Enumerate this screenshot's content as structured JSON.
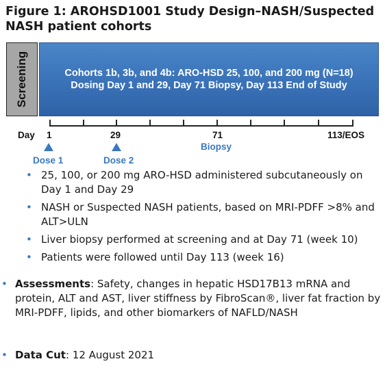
{
  "title": "Figure 1: AROHSD1001 Study Design–NASH/Suspected NASH patient cohorts",
  "screening_label": "Screening",
  "dosing_box": {
    "line1": "Cohorts 1b, 3b, and 4b: ARO-HSD 25, 100, and 200 mg (N=18)",
    "line2": "Dosing Day 1 and 29, Day 71 Biopsy, Day 113 End of Study"
  },
  "timeline": {
    "day_label": "Day",
    "tick_labels": [
      "1",
      "29",
      "71",
      "113/EOS"
    ],
    "biopsy_label": "Biopsy",
    "dose1_label": "Dose 1",
    "dose2_label": "Dose 2"
  },
  "bullets": [
    "25, 100, or 200 mg ARO-HSD administered subcutaneously on Day 1 and Day 29",
    "NASH or Suspected NASH patients, based on MRI-PDFF >8% and ALT>ULN",
    "Liver biopsy performed at screening and at Day 71 (week 10)",
    "Patients were followed until Day 113 (week 16)"
  ],
  "assessments": {
    "label": "Assessments",
    "text": ": Safety, changes in hepatic HSD17B13 mRNA and protein, ALT and AST, liver stiffness by FibroScan®, liver fat fraction by MRI-PDFF, lipids, and other biomarkers of NAFLD/NASH"
  },
  "data_cut": {
    "label": "Data Cut",
    "text": ": 12 August 2021"
  },
  "colors": {
    "box_blue": "#3a72b8",
    "accent_blue": "#3a78c2",
    "screening_gray": "#a6a6a6"
  }
}
